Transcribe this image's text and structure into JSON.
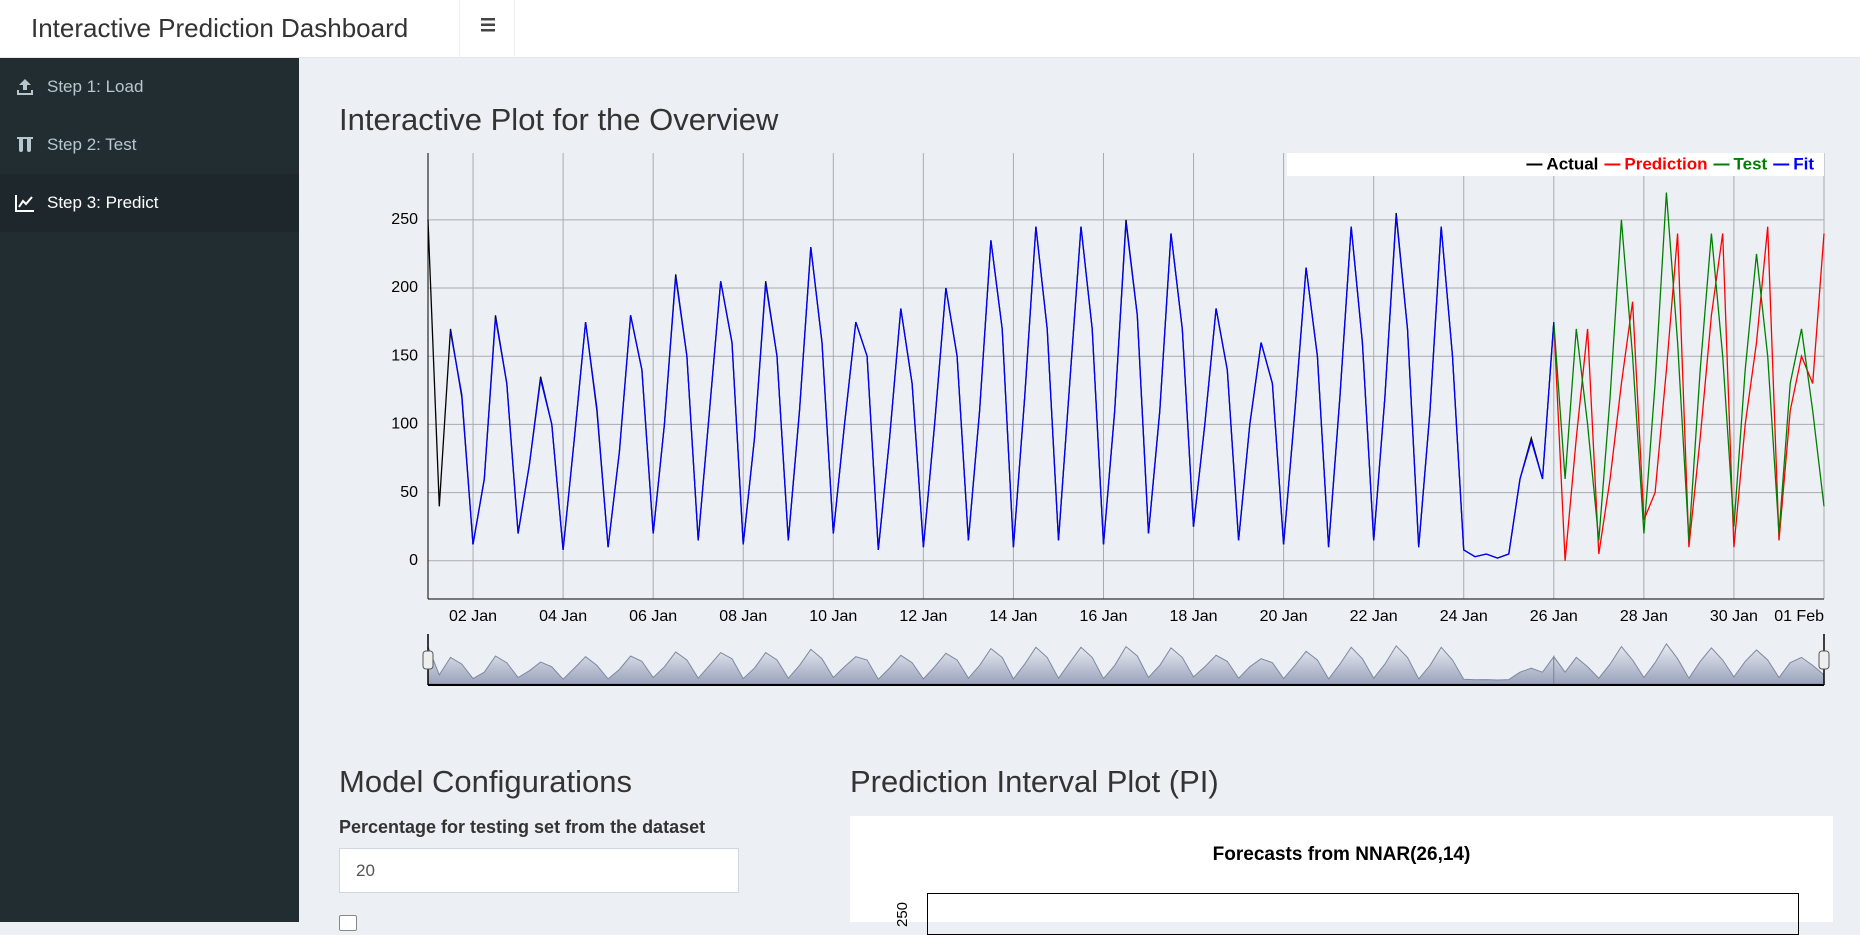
{
  "header": {
    "title": "Interactive Prediction Dashboard"
  },
  "sidebar": {
    "items": [
      "Step 1: Load",
      "Step 2: Test",
      "Step 3: Predict"
    ]
  },
  "overview": {
    "heading": "Interactive Plot for the Overview"
  },
  "chart_data": {
    "type": "line",
    "x": [
      1,
      1.25,
      1.5,
      1.75,
      2,
      2.25,
      2.5,
      2.75,
      3,
      3.25,
      3.5,
      3.75,
      4,
      4.25,
      4.5,
      4.75,
      5,
      5.25,
      5.5,
      5.75,
      6,
      6.25,
      6.5,
      6.75,
      7,
      7.25,
      7.5,
      7.75,
      8,
      8.25,
      8.5,
      8.75,
      9,
      9.25,
      9.5,
      9.75,
      10,
      10.25,
      10.5,
      10.75,
      11,
      11.25,
      11.5,
      11.75,
      12,
      12.25,
      12.5,
      12.75,
      13,
      13.25,
      13.5,
      13.75,
      14,
      14.25,
      14.5,
      14.75,
      15,
      15.25,
      15.5,
      15.75,
      16,
      16.25,
      16.5,
      16.75,
      17,
      17.25,
      17.5,
      17.75,
      18,
      18.25,
      18.5,
      18.75,
      19,
      19.25,
      19.5,
      19.75,
      20,
      20.25,
      20.5,
      20.75,
      21,
      21.25,
      21.5,
      21.75,
      22,
      22.25,
      22.5,
      22.75,
      23,
      23.25,
      23.5,
      23.75,
      24,
      24.25,
      24.5,
      24.75,
      25,
      25.25,
      25.5,
      25.75,
      26,
      26.25,
      26.5,
      26.75,
      27,
      27.25,
      27.5,
      27.75,
      28,
      28.25,
      28.5,
      28.75,
      29,
      29.25,
      29.5,
      29.75,
      30,
      30.25,
      30.5,
      30.75,
      31,
      31.25,
      31.5,
      31.75,
      32
    ],
    "series": [
      {
        "name": "Actual",
        "color": "#000000",
        "values": [
          250,
          40,
          170,
          120,
          12,
          60,
          180,
          130,
          20,
          70,
          135,
          100,
          8,
          90,
          175,
          110,
          10,
          80,
          180,
          140,
          20,
          100,
          210,
          150,
          15,
          110,
          205,
          160,
          12,
          90,
          205,
          150,
          15,
          110,
          230,
          160,
          20,
          100,
          175,
          150,
          8,
          90,
          185,
          130,
          10,
          100,
          200,
          150,
          15,
          110,
          235,
          170,
          10,
          120,
          245,
          170,
          15,
          130,
          245,
          170,
          12,
          110,
          250,
          180,
          20,
          110,
          240,
          170,
          25,
          100,
          185,
          140,
          15,
          100,
          160,
          130,
          12,
          110,
          215,
          150,
          10,
          120,
          245,
          160,
          15,
          120,
          255,
          170,
          10,
          110,
          245,
          150,
          8,
          3,
          5,
          2,
          5,
          60,
          90,
          60,
          175,
          null,
          null,
          null,
          null,
          null,
          null,
          null,
          null,
          null,
          null,
          null,
          null,
          null,
          null,
          null,
          null,
          null,
          null,
          null,
          null,
          null,
          null,
          null,
          null
        ]
      },
      {
        "name": "Prediction",
        "color": "#ff0000",
        "values": [
          null,
          null,
          null,
          null,
          null,
          null,
          null,
          null,
          null,
          null,
          null,
          null,
          null,
          null,
          null,
          null,
          null,
          null,
          null,
          null,
          null,
          null,
          null,
          null,
          null,
          null,
          null,
          null,
          null,
          null,
          null,
          null,
          null,
          null,
          null,
          null,
          null,
          null,
          null,
          null,
          null,
          null,
          null,
          null,
          null,
          null,
          null,
          null,
          null,
          null,
          null,
          null,
          null,
          null,
          null,
          null,
          null,
          null,
          null,
          null,
          null,
          null,
          null,
          null,
          null,
          null,
          null,
          null,
          null,
          null,
          null,
          null,
          null,
          null,
          null,
          null,
          null,
          null,
          null,
          null,
          null,
          null,
          null,
          null,
          null,
          null,
          null,
          null,
          null,
          null,
          null,
          null,
          null,
          null,
          null,
          null,
          null,
          null,
          null,
          null,
          175,
          0,
          90,
          170,
          5,
          60,
          130,
          190,
          30,
          50,
          140,
          240,
          10,
          90,
          180,
          240,
          10,
          100,
          160,
          245,
          15,
          110,
          150,
          130,
          240
        ]
      },
      {
        "name": "Test",
        "color": "#008000",
        "values": [
          null,
          null,
          null,
          null,
          null,
          null,
          null,
          null,
          null,
          null,
          null,
          null,
          null,
          null,
          null,
          null,
          null,
          null,
          null,
          null,
          null,
          null,
          null,
          null,
          null,
          null,
          null,
          null,
          null,
          null,
          null,
          null,
          null,
          null,
          null,
          null,
          null,
          null,
          null,
          null,
          null,
          null,
          null,
          null,
          null,
          null,
          null,
          null,
          null,
          null,
          null,
          null,
          null,
          null,
          null,
          null,
          null,
          null,
          null,
          null,
          null,
          null,
          null,
          null,
          null,
          null,
          null,
          null,
          null,
          null,
          null,
          null,
          null,
          null,
          null,
          null,
          null,
          null,
          null,
          null,
          null,
          null,
          null,
          null,
          null,
          null,
          null,
          null,
          null,
          null,
          null,
          null,
          null,
          null,
          null,
          null,
          null,
          null,
          null,
          null,
          175,
          60,
          170,
          100,
          15,
          120,
          250,
          150,
          20,
          130,
          270,
          160,
          15,
          140,
          240,
          150,
          25,
          140,
          225,
          150,
          20,
          130,
          170,
          110,
          40
        ]
      },
      {
        "name": "Fit",
        "color": "#0000ff",
        "values": [
          null,
          null,
          168,
          122,
          12,
          60,
          178,
          130,
          20,
          70,
          133,
          100,
          8,
          90,
          175,
          112,
          10,
          80,
          180,
          140,
          20,
          100,
          208,
          150,
          15,
          110,
          205,
          160,
          12,
          90,
          203,
          150,
          15,
          110,
          230,
          160,
          20,
          100,
          175,
          150,
          8,
          90,
          185,
          130,
          10,
          100,
          200,
          150,
          15,
          110,
          235,
          170,
          10,
          120,
          245,
          170,
          15,
          130,
          245,
          170,
          12,
          110,
          248,
          180,
          20,
          110,
          240,
          170,
          25,
          100,
          185,
          140,
          15,
          100,
          160,
          130,
          12,
          110,
          215,
          150,
          10,
          120,
          245,
          160,
          15,
          120,
          253,
          170,
          10,
          110,
          245,
          150,
          8,
          3,
          5,
          2,
          5,
          60,
          88,
          60,
          175,
          null,
          null,
          null,
          null,
          null,
          null,
          null,
          null,
          null,
          null,
          null,
          null,
          null,
          null,
          null,
          null,
          null,
          null,
          null,
          null,
          null,
          null,
          null,
          null
        ]
      }
    ],
    "xlim": [
      1,
      32
    ],
    "xticks": [
      {
        "value": 2,
        "label": "02 Jan"
      },
      {
        "value": 4,
        "label": "04 Jan"
      },
      {
        "value": 6,
        "label": "06 Jan"
      },
      {
        "value": 8,
        "label": "08 Jan"
      },
      {
        "value": 10,
        "label": "10 Jan"
      },
      {
        "value": 12,
        "label": "12 Jan"
      },
      {
        "value": 14,
        "label": "14 Jan"
      },
      {
        "value": 16,
        "label": "16 Jan"
      },
      {
        "value": 18,
        "label": "18 Jan"
      },
      {
        "value": 20,
        "label": "20 Jan"
      },
      {
        "value": 22,
        "label": "22 Jan"
      },
      {
        "value": 24,
        "label": "24 Jan"
      },
      {
        "value": 26,
        "label": "26 Jan"
      },
      {
        "value": 28,
        "label": "28 Jan"
      },
      {
        "value": 30,
        "label": "30 Jan"
      },
      {
        "value": 32,
        "label": "01 Feb"
      }
    ],
    "ylim": [
      -28,
      299
    ],
    "yticks": [
      0,
      50,
      100,
      150,
      200,
      250
    ],
    "grid": true,
    "legend": "top-right"
  },
  "model_config": {
    "heading": "Model Configurations",
    "label": "Percentage for testing set from the dataset",
    "input_value": "20"
  },
  "pi_plot": {
    "heading": "Prediction Interval Plot (PI)",
    "title": "Forecasts from NNAR(26,14)",
    "y_tick_label": "250"
  }
}
